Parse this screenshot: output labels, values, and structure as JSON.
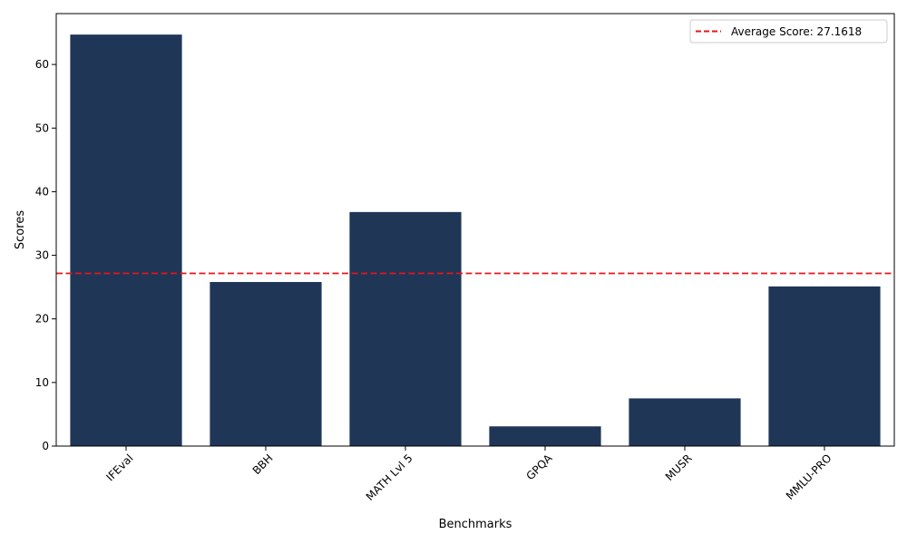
{
  "chart_data": {
    "type": "bar",
    "title": "",
    "xlabel": "Benchmarks",
    "ylabel": "Scores",
    "categories": [
      "IFEval",
      "BBH",
      "MATH Lvl 5",
      "GPQA",
      "MUSR",
      "MMLU-PRO"
    ],
    "values": [
      64.7,
      25.8,
      36.8,
      3.1,
      7.5,
      25.1
    ],
    "ylim": [
      0,
      68
    ],
    "yticks": [
      0,
      10,
      20,
      30,
      40,
      50,
      60
    ],
    "bar_color": "#1f3657",
    "reference_line": {
      "value": 27.1618,
      "label": "Average Score: 27.1618",
      "color": "#e8141b",
      "style": "dashed"
    },
    "grid": false,
    "legend_position": "top-right"
  }
}
